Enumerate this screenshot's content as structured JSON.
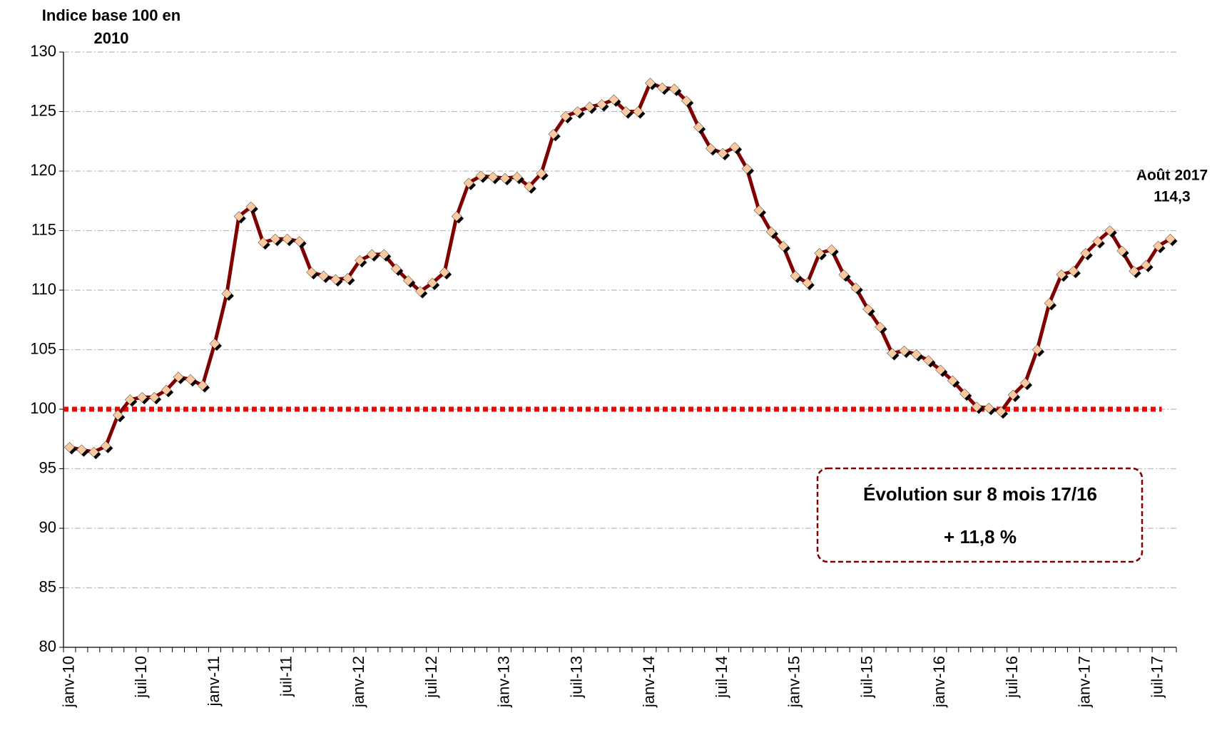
{
  "chart_data": {
    "type": "line",
    "y_label_lines": [
      "Indice base 100 en",
      "2010"
    ],
    "categories": [
      "janv-10",
      null,
      null,
      null,
      null,
      null,
      "juil-10",
      null,
      null,
      null,
      null,
      null,
      "janv-11",
      null,
      null,
      null,
      null,
      null,
      "juil-11",
      null,
      null,
      null,
      null,
      null,
      "janv-12",
      null,
      null,
      null,
      null,
      null,
      "juil-12",
      null,
      null,
      null,
      null,
      null,
      "janv-13",
      null,
      null,
      null,
      null,
      null,
      "juil-13",
      null,
      null,
      null,
      null,
      null,
      "janv-14",
      null,
      null,
      null,
      null,
      null,
      "juil-14",
      null,
      null,
      null,
      null,
      null,
      "janv-15",
      null,
      null,
      null,
      null,
      null,
      "juil-15",
      null,
      null,
      null,
      null,
      null,
      "janv-16",
      null,
      null,
      null,
      null,
      null,
      "juil-16",
      null,
      null,
      null,
      null,
      null,
      "janv-17",
      null,
      null,
      null,
      null,
      null,
      "juil-17",
      null
    ],
    "series": [
      {
        "color": "#800000",
        "marker_color": "#f9c9a0",
        "values": [
          96.8,
          96.6,
          96.4,
          96.9,
          99.5,
          100.8,
          101.0,
          101.0,
          101.6,
          102.7,
          102.5,
          102.0,
          105.5,
          109.7,
          116.2,
          117.0,
          114.0,
          114.3,
          114.3,
          114.1,
          111.5,
          111.2,
          110.9,
          111.0,
          112.5,
          113.0,
          113.0,
          111.8,
          110.8,
          109.9,
          110.6,
          111.5,
          116.2,
          119.0,
          119.6,
          119.5,
          119.4,
          119.5,
          118.7,
          119.8,
          123.1,
          124.6,
          125.0,
          125.4,
          125.6,
          126.0,
          125.0,
          125.0,
          127.4,
          127.0,
          126.9,
          125.9,
          123.7,
          121.9,
          121.5,
          122.0,
          120.2,
          116.7,
          114.9,
          113.7,
          111.2,
          110.6,
          113.1,
          113.4,
          111.3,
          110.2,
          108.4,
          106.9,
          104.7,
          104.9,
          104.6,
          104.1,
          103.3,
          102.4,
          101.3,
          100.2,
          100.1,
          99.8,
          101.2,
          102.2,
          105.0,
          108.9,
          111.3,
          111.6,
          113.1,
          114.1,
          115.0,
          113.3,
          111.6,
          112.1,
          113.7,
          114.3
        ]
      }
    ],
    "ylim": [
      80,
      130
    ],
    "yticks": [
      80,
      85,
      90,
      95,
      100,
      105,
      110,
      115,
      120,
      125,
      130
    ],
    "grid": true,
    "reference_line": {
      "value": 100,
      "color": "#ff0000"
    },
    "last_point_annotation": [
      "Août 2017",
      "114,3"
    ],
    "box_annotation": {
      "title": "Évolution sur 8 mois 17/16",
      "text": "+ 11,8 %",
      "color": "#800000"
    }
  }
}
